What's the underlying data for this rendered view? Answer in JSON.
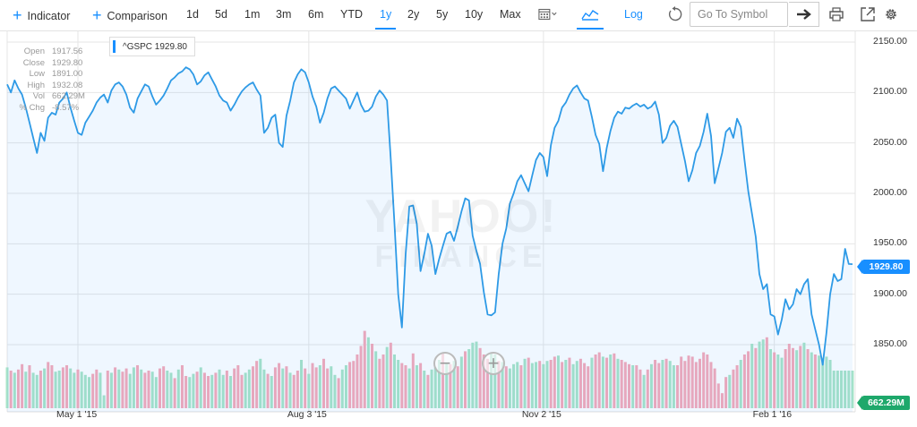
{
  "toolbar": {
    "indicator_label": "Indicator",
    "comparison_label": "Comparison",
    "ranges": [
      "1d",
      "5d",
      "1m",
      "3m",
      "6m",
      "YTD",
      "1y",
      "2y",
      "5y",
      "10y",
      "Max"
    ],
    "active_range": "1y",
    "log_label": "Log",
    "search_placeholder": "Go To Symbol"
  },
  "legend": {
    "label": "^GSPC 1929.80"
  },
  "info_panel": [
    {
      "k": "Open",
      "v": "1917.56"
    },
    {
      "k": "Close",
      "v": "1929.80"
    },
    {
      "k": "Low",
      "v": "1891.00"
    },
    {
      "k": "High",
      "v": "1932.08"
    },
    {
      "k": "Vol",
      "v": "662.29M"
    },
    {
      "k": "% Chg",
      "v": "-8.57%"
    }
  ],
  "price_tag": "1929.80",
  "volume_tag": "662.29M",
  "watermark": {
    "line1": "YAHOO!",
    "line2": "FINANCE"
  },
  "colors": {
    "accent": "#188fff",
    "line": "#2e9ae6",
    "vol_up": "#a8e4c8",
    "vol_down": "#f6a9b8",
    "vol_tag": "#1ea86b"
  },
  "chart_data": {
    "type": "line",
    "symbol": "^GSPC",
    "y_ticks": [
      "1850.00",
      "1900.00",
      "1950.00",
      "2000.00",
      "2050.00",
      "2100.00",
      "2150.00"
    ],
    "ylim": [
      1810,
      2160
    ],
    "x_ticks": [
      "May 1 '15",
      "Aug 3 '15",
      "Nov 2 '15",
      "Feb 1 '16"
    ],
    "x_tick_index": [
      19,
      81,
      144,
      206
    ],
    "grid": true,
    "series": [
      {
        "values": [
          2108,
          2100,
          2112,
          2104,
          2098,
          2085,
          2070,
          2055,
          2040,
          2060,
          2052,
          2075,
          2080,
          2078,
          2090,
          2094,
          2100,
          2085,
          2072,
          2060,
          2058,
          2070,
          2076,
          2082,
          2090,
          2095,
          2098,
          2090,
          2102,
          2108,
          2110,
          2106,
          2098,
          2085,
          2080,
          2094,
          2101,
          2108,
          2106,
          2096,
          2088,
          2092,
          2097,
          2104,
          2112,
          2115,
          2119,
          2121,
          2125,
          2123,
          2118,
          2108,
          2111,
          2117,
          2120,
          2113,
          2106,
          2097,
          2092,
          2090,
          2082,
          2088,
          2095,
          2101,
          2105,
          2108,
          2110,
          2103,
          2097,
          2060,
          2065,
          2075,
          2078,
          2050,
          2046,
          2077,
          2092,
          2110,
          2118,
          2123,
          2120,
          2110,
          2096,
          2086,
          2070,
          2080,
          2094,
          2104,
          2106,
          2102,
          2098,
          2094,
          2084,
          2092,
          2100,
          2088,
          2081,
          2082,
          2086,
          2096,
          2102,
          2098,
          2092,
          2035,
          1970,
          1900,
          1867,
          1940,
          1987,
          1988,
          1970,
          1923,
          1940,
          1960,
          1948,
          1920,
          1935,
          1948,
          1960,
          1962,
          1953,
          1967,
          1982,
          1995,
          1993,
          1958,
          1943,
          1930,
          1902,
          1880,
          1879,
          1882,
          1920,
          1950,
          1965,
          1990,
          2000,
          2012,
          2018,
          2010,
          2002,
          2018,
          2033,
          2040,
          2036,
          2017,
          2048,
          2065,
          2072,
          2085,
          2090,
          2098,
          2104,
          2107,
          2100,
          2094,
          2092,
          2076,
          2058,
          2049,
          2022,
          2045,
          2062,
          2075,
          2081,
          2079,
          2085,
          2084,
          2087,
          2089,
          2086,
          2088,
          2084,
          2086,
          2091,
          2078,
          2050,
          2055,
          2067,
          2072,
          2066,
          2049,
          2032,
          2012,
          2023,
          2040,
          2047,
          2061,
          2079,
          2057,
          2010,
          2025,
          2040,
          2061,
          2065,
          2055,
          2074,
          2066,
          2033,
          2002,
          1980,
          1957,
          1920,
          1905,
          1910,
          1880,
          1878,
          1860,
          1875,
          1895,
          1885,
          1890,
          1905,
          1900,
          1910,
          1915,
          1880,
          1865,
          1850,
          1830,
          1862,
          1900,
          1920,
          1913,
          1915,
          1945,
          1930,
          1929.8
        ]
      }
    ],
    "volume": {
      "max_label": "662.29M",
      "bars": [
        0.38,
        0.35,
        0.33,
        0.36,
        0.41,
        0.34,
        0.4,
        0.33,
        0.31,
        0.35,
        0.37,
        0.43,
        0.4,
        0.34,
        0.35,
        0.38,
        0.4,
        0.37,
        0.33,
        0.36,
        0.34,
        0.31,
        0.29,
        0.32,
        0.36,
        0.33,
        0.12,
        0.35,
        0.33,
        0.38,
        0.36,
        0.34,
        0.37,
        0.32,
        0.38,
        0.4,
        0.36,
        0.33,
        0.35,
        0.34,
        0.29,
        0.37,
        0.39,
        0.35,
        0.33,
        0.28,
        0.36,
        0.4,
        0.3,
        0.29,
        0.32,
        0.34,
        0.38,
        0.33,
        0.3,
        0.31,
        0.33,
        0.36,
        0.31,
        0.35,
        0.3,
        0.37,
        0.4,
        0.31,
        0.33,
        0.36,
        0.39,
        0.44,
        0.46,
        0.36,
        0.32,
        0.3,
        0.38,
        0.42,
        0.37,
        0.39,
        0.33,
        0.31,
        0.35,
        0.45,
        0.37,
        0.32,
        0.42,
        0.38,
        0.4,
        0.46,
        0.37,
        0.39,
        0.31,
        0.28,
        0.36,
        0.4,
        0.43,
        0.44,
        0.5,
        0.58,
        0.72,
        0.66,
        0.6,
        0.53,
        0.46,
        0.5,
        0.57,
        0.61,
        0.5,
        0.45,
        0.42,
        0.4,
        0.37,
        0.51,
        0.4,
        0.42,
        0.35,
        0.31,
        0.36,
        0.38,
        0.45,
        0.51,
        0.42,
        0.41,
        0.44,
        0.39,
        0.48,
        0.53,
        0.55,
        0.61,
        0.62,
        0.56,
        0.5,
        0.46,
        0.52,
        0.5,
        0.44,
        0.43,
        0.39,
        0.37,
        0.41,
        0.43,
        0.4,
        0.46,
        0.47,
        0.42,
        0.43,
        0.44,
        0.41,
        0.44,
        0.45,
        0.48,
        0.49,
        0.43,
        0.45,
        0.47,
        0.41,
        0.44,
        0.46,
        0.42,
        0.39,
        0.47,
        0.5,
        0.52,
        0.48,
        0.47,
        0.5,
        0.51,
        0.46,
        0.45,
        0.43,
        0.41,
        0.4,
        0.4,
        0.36,
        0.31,
        0.36,
        0.41,
        0.45,
        0.42,
        0.45,
        0.46,
        0.44,
        0.4,
        0.4,
        0.48,
        0.44,
        0.49,
        0.48,
        0.43,
        0.46,
        0.52,
        0.5,
        0.43,
        0.37,
        0.23,
        0.14,
        0.29,
        0.31,
        0.36,
        0.4,
        0.45,
        0.5,
        0.53,
        0.6,
        0.56,
        0.62,
        0.64,
        0.66,
        0.55,
        0.52,
        0.5,
        0.47,
        0.55,
        0.6,
        0.56,
        0.54,
        0.58,
        0.61,
        0.55,
        0.52,
        0.5,
        0.49,
        0.47,
        0.48,
        0.45
      ],
      "down": [
        0,
        1,
        0,
        1,
        1,
        0,
        1,
        0,
        0,
        1,
        0,
        1,
        1,
        0,
        0,
        1,
        1,
        0,
        0,
        1,
        0,
        0,
        0,
        1,
        1,
        0,
        0,
        1,
        0,
        1,
        0,
        1,
        1,
        0,
        0,
        1,
        0,
        1,
        1,
        0,
        0,
        1,
        1,
        0,
        0,
        1,
        0,
        1,
        1,
        0,
        0,
        1,
        0,
        1,
        1,
        0,
        1,
        0,
        0,
        1,
        0,
        1,
        1,
        1,
        0,
        0,
        1,
        1,
        0,
        0,
        1,
        0,
        1,
        1,
        0,
        1,
        0,
        1,
        1,
        0,
        1,
        0,
        1,
        1,
        0,
        1,
        1,
        0,
        0,
        1,
        0,
        0,
        1,
        1,
        1,
        1,
        1,
        0,
        1,
        0,
        1,
        1,
        0,
        1,
        0,
        0,
        1,
        1,
        0,
        1,
        0,
        1,
        0,
        1,
        0,
        0,
        0,
        1,
        0,
        1,
        0,
        1,
        0,
        1,
        0,
        0,
        0,
        1,
        1,
        1,
        0,
        0,
        1,
        0,
        1,
        0,
        0,
        0,
        1,
        0,
        1,
        0,
        0,
        1,
        0,
        0,
        1,
        1,
        0,
        1,
        0,
        1,
        0,
        0,
        1,
        1,
        1,
        0,
        1,
        1,
        0,
        1,
        0,
        1,
        0,
        1,
        1,
        1,
        0,
        1,
        1,
        0,
        1,
        0,
        1,
        1,
        0,
        1,
        0,
        0,
        1,
        1,
        1,
        1,
        1,
        1,
        1,
        1,
        1,
        1,
        1,
        1,
        1,
        1,
        0,
        1,
        1,
        0,
        1,
        1,
        0,
        1,
        0,
        0,
        1,
        0,
        1,
        0,
        0,
        1,
        1,
        1,
        0,
        1,
        0,
        1,
        0,
        1
      ]
    }
  }
}
